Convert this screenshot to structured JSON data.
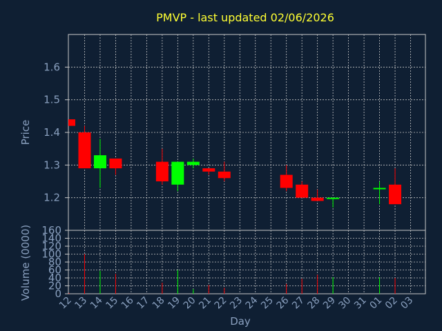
{
  "chart_data": [
    {
      "type": "candlestick",
      "title": "PMVP - last updated 02/06/2026",
      "ylabel": "Price",
      "ylim": [
        1.1,
        1.7
      ],
      "yticks": [
        "1.2",
        "1.3",
        "1.4",
        "1.5",
        "1.6"
      ],
      "grid": true,
      "colors": {
        "up": "#00ff00",
        "down": "#ff0000",
        "background": "#0f1f33",
        "grid": "#c8c8c8",
        "text": "#8aa0bf",
        "title": "#ffff33"
      },
      "candles": [
        {
          "day": "12",
          "open": 1.44,
          "high": 1.44,
          "low": 1.42,
          "close": 1.42
        },
        {
          "day": "13",
          "open": 1.4,
          "high": 1.42,
          "low": 1.29,
          "close": 1.29
        },
        {
          "day": "14",
          "open": 1.29,
          "high": 1.38,
          "low": 1.23,
          "close": 1.33
        },
        {
          "day": "15",
          "open": 1.32,
          "high": 1.32,
          "low": 1.27,
          "close": 1.29
        },
        {
          "day": "18",
          "open": 1.31,
          "high": 1.35,
          "low": 1.24,
          "close": 1.25
        },
        {
          "day": "19",
          "open": 1.24,
          "high": 1.31,
          "low": 1.22,
          "close": 1.31
        },
        {
          "day": "20",
          "open": 1.3,
          "high": 1.32,
          "low": 1.29,
          "close": 1.31
        },
        {
          "day": "21",
          "open": 1.29,
          "high": 1.29,
          "low": 1.27,
          "close": 1.28
        },
        {
          "day": "22",
          "open": 1.28,
          "high": 1.31,
          "low": 1.25,
          "close": 1.26
        },
        {
          "day": "26",
          "open": 1.27,
          "high": 1.3,
          "low": 1.22,
          "close": 1.23
        },
        {
          "day": "27",
          "open": 1.24,
          "high": 1.25,
          "low": 1.2,
          "close": 1.2
        },
        {
          "day": "28",
          "open": 1.2,
          "high": 1.225,
          "low": 1.19,
          "close": 1.19
        },
        {
          "day": "29",
          "open": 1.2,
          "high": 1.2,
          "low": 1.17,
          "close": 1.2
        },
        {
          "day": "01",
          "open": 1.23,
          "high": 1.25,
          "low": 1.18,
          "close": 1.23
        },
        {
          "day": "02",
          "open": 1.24,
          "high": 1.29,
          "low": 1.18,
          "close": 1.18
        }
      ]
    },
    {
      "type": "bar",
      "xlabel": "Day",
      "ylabel": "Volume (0000)",
      "ylim": [
        0,
        160
      ],
      "yticks": [
        "0",
        "20",
        "40",
        "60",
        "80",
        "100",
        "120",
        "140",
        "160"
      ],
      "grid": true,
      "categories": [
        "12",
        "13",
        "14",
        "15",
        "16",
        "17",
        "18",
        "19",
        "20",
        "21",
        "22",
        "23",
        "24",
        "25",
        "26",
        "27",
        "28",
        "29",
        "30",
        "31",
        "01",
        "02",
        "03"
      ],
      "bars": [
        {
          "day": "12",
          "value": 2,
          "direction": "down"
        },
        {
          "day": "13",
          "value": 100,
          "direction": "down"
        },
        {
          "day": "14",
          "value": 58,
          "direction": "up"
        },
        {
          "day": "15",
          "value": 50,
          "direction": "down"
        },
        {
          "day": "18",
          "value": 28,
          "direction": "down"
        },
        {
          "day": "19",
          "value": 60,
          "direction": "up"
        },
        {
          "day": "20",
          "value": 12,
          "direction": "up"
        },
        {
          "day": "21",
          "value": 22,
          "direction": "down"
        },
        {
          "day": "22",
          "value": 15,
          "direction": "down"
        },
        {
          "day": "26",
          "value": 25,
          "direction": "down"
        },
        {
          "day": "27",
          "value": 38,
          "direction": "down"
        },
        {
          "day": "28",
          "value": 48,
          "direction": "down"
        },
        {
          "day": "29",
          "value": 42,
          "direction": "up"
        },
        {
          "day": "01",
          "value": 42,
          "direction": "up"
        },
        {
          "day": "02",
          "value": 40,
          "direction": "down"
        }
      ]
    }
  ]
}
